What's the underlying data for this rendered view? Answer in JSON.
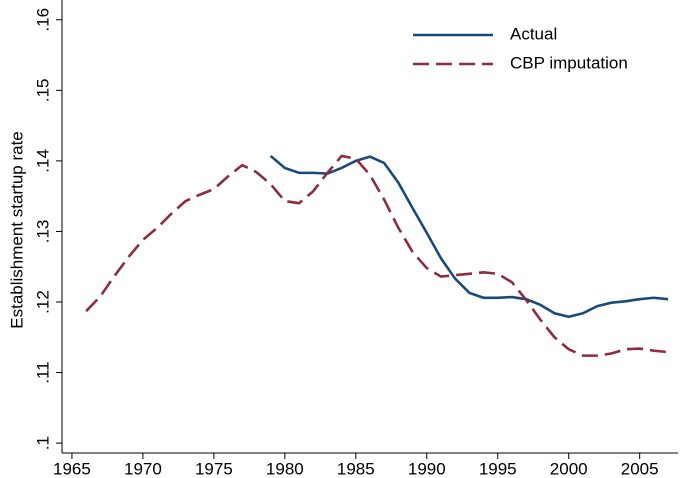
{
  "chart_data": {
    "type": "line",
    "y_label": "Establishment startup rate",
    "x": [
      1966,
      1967,
      1968,
      1969,
      1970,
      1971,
      1972,
      1973,
      1974,
      1975,
      1976,
      1977,
      1978,
      1979,
      1980,
      1981,
      1982,
      1983,
      1984,
      1985,
      1986,
      1987,
      1988,
      1989,
      1990,
      1991,
      1992,
      1993,
      1994,
      1995,
      1996,
      1997,
      1998,
      1999,
      2000,
      2001,
      2002,
      2003,
      2004,
      2005,
      2006,
      2007
    ],
    "series": [
      {
        "name": "Actual",
        "color": "#1b4a78",
        "linestyle": "solid",
        "values": [
          null,
          null,
          null,
          null,
          null,
          null,
          null,
          null,
          null,
          null,
          null,
          null,
          null,
          0.1407,
          0.139,
          0.1383,
          0.1383,
          0.1382,
          0.139,
          0.14,
          0.1406,
          0.1397,
          0.1369,
          0.1333,
          0.1298,
          0.1262,
          0.1233,
          0.1213,
          0.1206,
          0.1206,
          0.1207,
          0.1204,
          0.1196,
          0.1184,
          0.1179,
          0.1184,
          0.1194,
          0.1199,
          0.1201,
          0.1204,
          0.1206,
          0.1204
        ]
      },
      {
        "name": "CBP imputation",
        "color": "#8c2d3e",
        "linestyle": "dashed",
        "values": [
          0.1187,
          0.1208,
          0.1237,
          0.1264,
          0.1288,
          0.1305,
          0.1325,
          0.1343,
          0.1352,
          0.136,
          0.1378,
          0.1394,
          0.1384,
          0.1367,
          0.1343,
          0.134,
          0.1357,
          0.1383,
          0.1407,
          0.1403,
          0.138,
          0.1345,
          0.1305,
          0.1271,
          0.1248,
          0.1236,
          0.1238,
          0.124,
          0.1242,
          0.124,
          0.1228,
          0.1203,
          0.1175,
          0.115,
          0.1133,
          0.1124,
          0.1124,
          0.1127,
          0.1133,
          0.1134,
          0.1131,
          0.1129
        ]
      }
    ],
    "xlim": [
      1964.3,
      2007.7
    ],
    "xticks": [
      1965,
      1970,
      1975,
      1980,
      1985,
      1990,
      1995,
      2000,
      2005
    ],
    "ylim": [
      0.0986,
      0.1628
    ],
    "yticks": [
      {
        "value": 0.1,
        "label": ".1"
      },
      {
        "value": 0.11,
        "label": ".11"
      },
      {
        "value": 0.12,
        "label": ".12"
      },
      {
        "value": 0.13,
        "label": ".13"
      },
      {
        "value": 0.14,
        "label": ".14"
      },
      {
        "value": 0.15,
        "label": ".15"
      },
      {
        "value": 0.16,
        "label": ".16"
      }
    ],
    "grid": false,
    "legend": "top-right"
  }
}
